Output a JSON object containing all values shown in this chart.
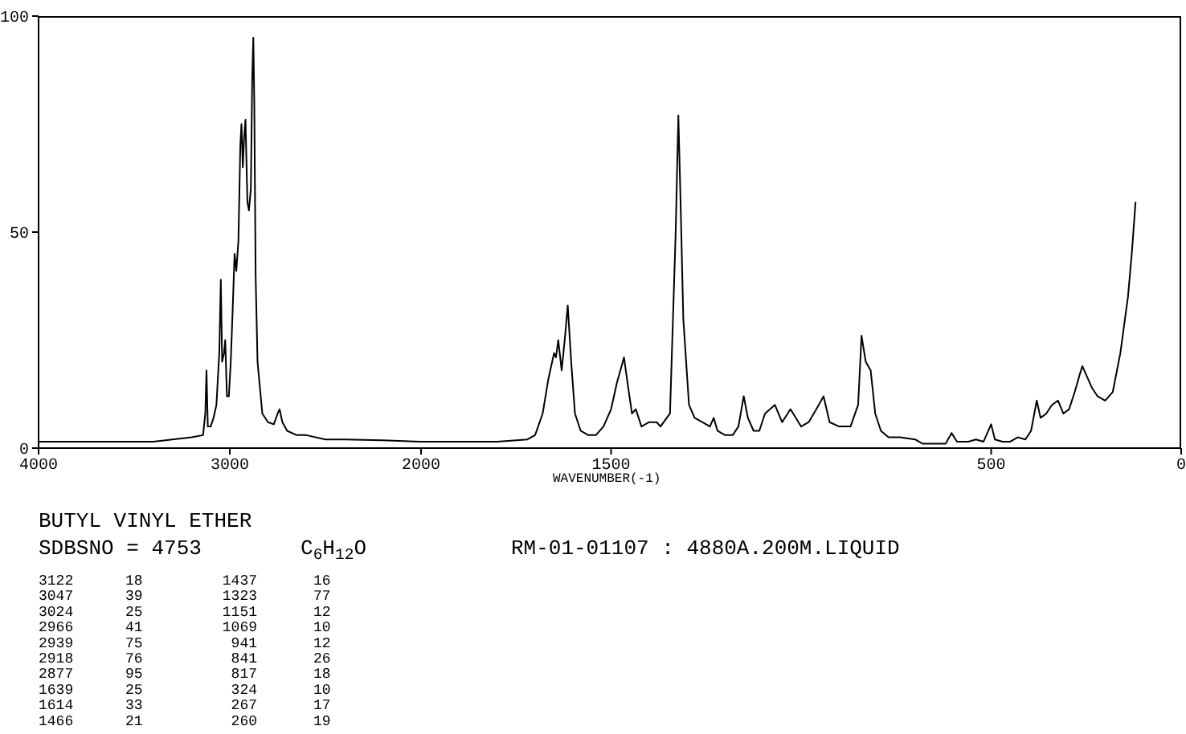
{
  "chart_data": [
    {
      "type": "line",
      "title": "BUTYL VINYL ETHER",
      "xlim": [
        4000,
        2000
      ],
      "xticks": [
        4000,
        3000,
        2000
      ],
      "ylim": [
        0,
        100
      ],
      "yticks": [
        0,
        50,
        100
      ],
      "grid": false,
      "legend": false,
      "marker": "none",
      "line_style": "solid",
      "series": [
        {
          "color": "#000000",
          "x": [
            4000,
            3800,
            3600,
            3400,
            3300,
            3200,
            3140,
            3128,
            3122,
            3115,
            3100,
            3085,
            3070,
            3055,
            3047,
            3040,
            3030,
            3024,
            3015,
            3005,
            2995,
            2985,
            2975,
            2966,
            2955,
            2945,
            2939,
            2932,
            2925,
            2918,
            2908,
            2900,
            2890,
            2883,
            2877,
            2872,
            2865,
            2855,
            2830,
            2800,
            2770,
            2750,
            2740,
            2725,
            2700,
            2650,
            2600,
            2500,
            2400,
            2200,
            2000
          ],
          "values": [
            1.5,
            1.5,
            1.5,
            1.5,
            2,
            2.5,
            3,
            8,
            18,
            5,
            5,
            7,
            10,
            22,
            39,
            20,
            22,
            25,
            12,
            12,
            20,
            32,
            45,
            41,
            48,
            70,
            75,
            65,
            72,
            76,
            57,
            55,
            60,
            85,
            95,
            80,
            40,
            20,
            8,
            6,
            5.5,
            8,
            9,
            6,
            4,
            3,
            3,
            2,
            2,
            1.8,
            1.5
          ]
        }
      ],
      "annotations": [
        "SDBSNO = 4753",
        "C$_{6}$H$_{12}$O",
        "RM-01-01107 : 4880A.200M.LIQUID",
        "3122",
        "18",
        "1437",
        "16",
        "3047",
        "39",
        "1323",
        "77",
        "3024",
        "25",
        "1151",
        "12",
        "2966",
        "41",
        "1069",
        "10",
        "2939",
        "75",
        "941",
        "12",
        "2918",
        "76",
        "841",
        "26",
        "2877",
        "95",
        "817",
        "18",
        "1639",
        "25",
        "324",
        "10",
        "1614",
        "33",
        "267",
        "17",
        "1466",
        "21",
        "260",
        "19"
      ]
    },
    {
      "type": "line",
      "xlabel": "WAVENUMBER(-1)",
      "xlim": [
        2000,
        0
      ],
      "xticks": [
        1500,
        500,
        0
      ],
      "ylim": [
        0,
        100
      ],
      "tick_labels": "x",
      "grid": false,
      "legend": false,
      "marker": "none",
      "line_style": "solid",
      "series": [
        {
          "color": "#000000",
          "x": [
            2000,
            1800,
            1720,
            1700,
            1680,
            1665,
            1650,
            1645,
            1639,
            1630,
            1622,
            1614,
            1605,
            1595,
            1580,
            1560,
            1540,
            1520,
            1500,
            1485,
            1466,
            1455,
            1445,
            1435,
            1420,
            1400,
            1380,
            1370,
            1345,
            1330,
            1323,
            1318,
            1310,
            1295,
            1280,
            1260,
            1240,
            1230,
            1220,
            1200,
            1180,
            1165,
            1151,
            1140,
            1125,
            1110,
            1095,
            1069,
            1050,
            1028,
            1000,
            980,
            960,
            941,
            925,
            900,
            870,
            850,
            841,
            830,
            817,
            805,
            790,
            770,
            740,
            700,
            680,
            640,
            620,
            604,
            590,
            560,
            540,
            520,
            500,
            490,
            470,
            450,
            430,
            410,
            395,
            380,
            370,
            355,
            340,
            324,
            310,
            295,
            280,
            267,
            260,
            250,
            235,
            220,
            200,
            180,
            160,
            140,
            130,
            120
          ],
          "values": [
            1.5,
            1.5,
            2,
            3,
            8,
            16,
            22,
            21,
            25,
            18,
            25,
            33,
            20,
            8,
            4,
            3,
            3,
            5,
            9,
            15,
            21,
            14,
            8,
            9,
            5,
            6,
            6,
            5,
            8,
            50,
            77,
            60,
            30,
            10,
            7,
            6,
            5,
            7,
            4,
            3,
            3,
            5,
            12,
            7,
            4,
            4,
            8,
            10,
            6,
            9,
            5,
            6,
            9,
            12,
            6,
            5,
            5,
            10,
            26,
            20,
            18,
            8,
            4,
            2.5,
            2.5,
            2,
            1,
            1,
            1,
            3.5,
            1.5,
            1.5,
            2,
            1.5,
            5.5,
            2,
            1.5,
            1.5,
            2.5,
            2,
            4,
            11,
            7,
            8,
            10,
            11,
            8,
            9,
            13,
            17,
            19,
            17,
            14,
            12,
            11,
            13,
            22,
            35,
            45,
            57
          ]
        }
      ]
    }
  ]
}
